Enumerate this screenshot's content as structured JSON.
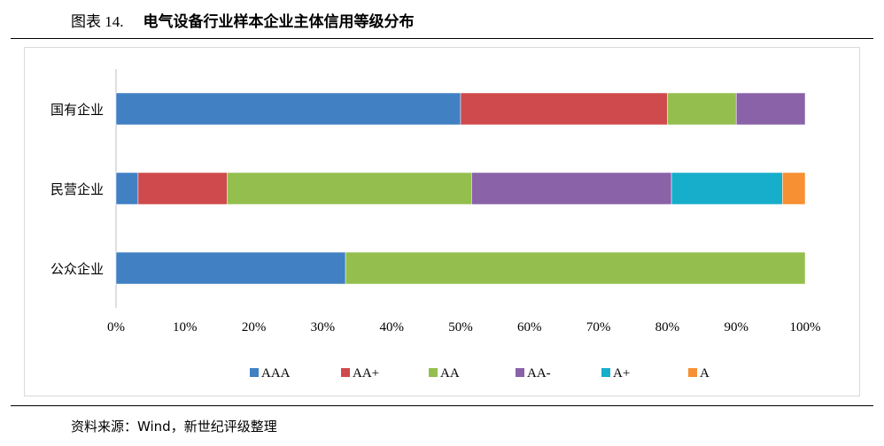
{
  "figure": {
    "number": "图表 14.",
    "title": "电气设备行业样本企业主体信用等级分布",
    "source": "资料来源：Wind，新世纪评级整理"
  },
  "chart_data": {
    "type": "bar",
    "orientation": "horizontal",
    "stacked": "percent",
    "categories": [
      "国有企业",
      "民营企业",
      "公众企业"
    ],
    "series": [
      {
        "name": "AAA",
        "color": "#4080C3",
        "values": [
          50.0,
          3.2,
          33.3
        ]
      },
      {
        "name": "AA+",
        "color": "#CF4A4C",
        "values": [
          30.0,
          12.9,
          0
        ]
      },
      {
        "name": "AA",
        "color": "#94BF4E",
        "values": [
          10.0,
          35.5,
          66.7
        ]
      },
      {
        "name": "AA-",
        "color": "#8A62A8",
        "values": [
          10.0,
          29.0,
          0
        ]
      },
      {
        "name": "A+",
        "color": "#16AECA",
        "values": [
          0,
          16.1,
          0
        ]
      },
      {
        "name": "A",
        "color": "#F69033",
        "values": [
          0,
          3.3,
          0
        ]
      }
    ],
    "xlim": [
      0,
      100
    ],
    "x_ticks": [
      "0%",
      "10%",
      "20%",
      "30%",
      "40%",
      "50%",
      "60%",
      "70%",
      "80%",
      "90%",
      "100%"
    ],
    "grid": false,
    "legend_position": "bottom"
  }
}
